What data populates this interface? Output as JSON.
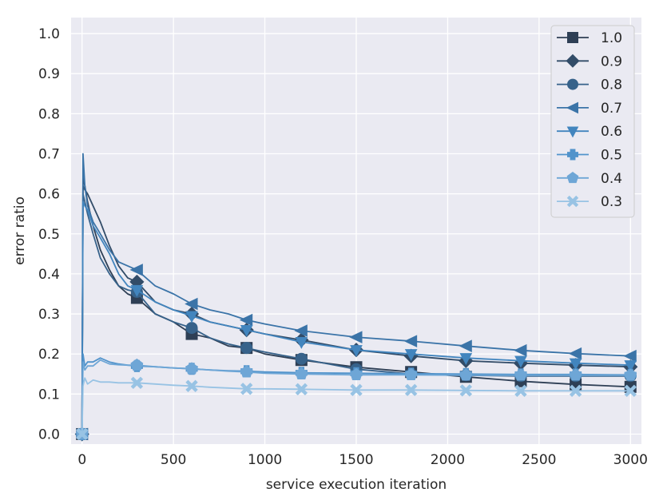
{
  "chart_data": {
    "type": "line",
    "xlabel": "service execution iteration",
    "ylabel": "error ratio",
    "xlim": [
      -60,
      3060
    ],
    "ylim": [
      -0.025,
      1.04
    ],
    "xticks": [
      0,
      500,
      1000,
      1500,
      2000,
      2500,
      3000
    ],
    "yticks": [
      0.0,
      0.1,
      0.2,
      0.3,
      0.4,
      0.5,
      0.6,
      0.7,
      0.8,
      0.9,
      1.0
    ],
    "xtick_labels": [
      "0",
      "500",
      "1000",
      "1500",
      "2000",
      "2500",
      "3000"
    ],
    "ytick_labels": [
      "0.0",
      "0.1",
      "0.2",
      "0.3",
      "0.4",
      "0.5",
      "0.6",
      "0.7",
      "0.8",
      "0.9",
      "1.0"
    ],
    "grid": true,
    "legend_position": "top-right",
    "series": [
      {
        "name": "1.0",
        "color": "#2e3f55",
        "marker": "square",
        "x": [
          0,
          5,
          15,
          30,
          60,
          100,
          150,
          200,
          250,
          300,
          400,
          500,
          600,
          700,
          800,
          900,
          1000,
          1200,
          1500,
          1800,
          2100,
          2400,
          2700,
          3000
        ],
        "y": [
          0.0,
          0.64,
          0.62,
          0.58,
          0.52,
          0.46,
          0.41,
          0.37,
          0.35,
          0.34,
          0.3,
          0.28,
          0.25,
          0.24,
          0.22,
          0.215,
          0.2,
          0.185,
          0.167,
          0.155,
          0.143,
          0.132,
          0.124,
          0.118
        ],
        "marker_x": [
          0,
          300,
          600,
          900,
          1200,
          1500,
          1800,
          2100,
          2400,
          2700,
          3000
        ]
      },
      {
        "name": "0.9",
        "color": "#324c68",
        "marker": "diamond",
        "x": [
          0,
          5,
          15,
          30,
          60,
          100,
          150,
          200,
          250,
          300,
          400,
          500,
          600,
          700,
          800,
          900,
          1000,
          1200,
          1500,
          1800,
          2100,
          2400,
          2700,
          3000
        ],
        "y": [
          0.0,
          0.62,
          0.61,
          0.6,
          0.57,
          0.53,
          0.47,
          0.42,
          0.39,
          0.38,
          0.33,
          0.31,
          0.3,
          0.28,
          0.27,
          0.26,
          0.25,
          0.235,
          0.21,
          0.195,
          0.183,
          0.177,
          0.172,
          0.168
        ],
        "marker_x": [
          0,
          300,
          600,
          900,
          1200,
          1500,
          1800,
          2100,
          2400,
          2700,
          3000
        ]
      },
      {
        "name": "0.8",
        "color": "#37628a",
        "marker": "circle",
        "x": [
          0,
          5,
          15,
          30,
          60,
          100,
          150,
          200,
          250,
          300,
          400,
          500,
          600,
          700,
          800,
          900,
          1000,
          1200,
          1500,
          1800,
          2100,
          2400,
          2700,
          3000
        ],
        "y": [
          0.0,
          0.6,
          0.58,
          0.55,
          0.5,
          0.44,
          0.4,
          0.37,
          0.36,
          0.355,
          0.3,
          0.28,
          0.265,
          0.24,
          0.225,
          0.215,
          0.205,
          0.188,
          0.162,
          0.15,
          0.147,
          0.145,
          0.145,
          0.145
        ],
        "marker_x": [
          0,
          300,
          600,
          900,
          1200,
          1500,
          1800,
          2100,
          2400,
          2700,
          3000
        ]
      },
      {
        "name": "0.7",
        "color": "#3b74a8",
        "marker": "triangle-left",
        "x": [
          0,
          5,
          15,
          30,
          60,
          100,
          150,
          200,
          250,
          300,
          400,
          500,
          600,
          700,
          800,
          900,
          1000,
          1200,
          1500,
          1800,
          2100,
          2400,
          2700,
          3000
        ],
        "y": [
          0.0,
          0.7,
          0.62,
          0.57,
          0.53,
          0.5,
          0.46,
          0.43,
          0.42,
          0.41,
          0.37,
          0.35,
          0.325,
          0.31,
          0.3,
          0.285,
          0.275,
          0.258,
          0.242,
          0.232,
          0.22,
          0.209,
          0.201,
          0.195
        ],
        "marker_x": [
          0,
          300,
          600,
          900,
          1200,
          1500,
          1800,
          2100,
          2400,
          2700,
          3000
        ]
      },
      {
        "name": "0.6",
        "color": "#4285be",
        "marker": "triangle-down",
        "x": [
          0,
          5,
          15,
          30,
          60,
          100,
          150,
          200,
          250,
          300,
          400,
          500,
          600,
          700,
          800,
          900,
          1000,
          1200,
          1500,
          1800,
          2100,
          2400,
          2700,
          3000
        ],
        "y": [
          0.0,
          0.58,
          0.57,
          0.56,
          0.52,
          0.49,
          0.45,
          0.4,
          0.37,
          0.36,
          0.33,
          0.31,
          0.295,
          0.28,
          0.27,
          0.26,
          0.25,
          0.23,
          0.21,
          0.2,
          0.19,
          0.183,
          0.177,
          0.172
        ],
        "marker_x": [
          0,
          300,
          600,
          900,
          1200,
          1500,
          1800,
          2100,
          2400,
          2700,
          3000
        ]
      },
      {
        "name": "0.5",
        "color": "#5193cb",
        "marker": "plus",
        "x": [
          0,
          5,
          15,
          30,
          60,
          100,
          150,
          200,
          250,
          300,
          400,
          500,
          600,
          700,
          800,
          900,
          1000,
          1200,
          1500,
          1800,
          2100,
          2400,
          2700,
          3000
        ],
        "y": [
          0.0,
          0.2,
          0.17,
          0.18,
          0.18,
          0.19,
          0.18,
          0.175,
          0.172,
          0.17,
          0.168,
          0.165,
          0.163,
          0.16,
          0.158,
          0.157,
          0.155,
          0.153,
          0.152,
          0.151,
          0.15,
          0.149,
          0.149,
          0.148
        ],
        "marker_x": [
          0,
          300,
          600,
          900,
          1200,
          1500,
          1800,
          2100,
          2400,
          2700,
          3000
        ]
      },
      {
        "name": "0.4",
        "color": "#6ea6d6",
        "marker": "pentagon",
        "x": [
          0,
          5,
          15,
          30,
          60,
          100,
          150,
          200,
          250,
          300,
          400,
          500,
          600,
          700,
          800,
          900,
          1000,
          1200,
          1500,
          1800,
          2100,
          2400,
          2700,
          3000
        ],
        "y": [
          0.0,
          0.18,
          0.16,
          0.17,
          0.17,
          0.185,
          0.175,
          0.173,
          0.172,
          0.172,
          0.168,
          0.165,
          0.163,
          0.16,
          0.157,
          0.155,
          0.152,
          0.15,
          0.148,
          0.148,
          0.147,
          0.147,
          0.147,
          0.147
        ],
        "marker_x": [
          0,
          300,
          600,
          900,
          1200,
          1500,
          1800,
          2100,
          2400,
          2700,
          3000
        ]
      },
      {
        "name": "0.3",
        "color": "#98c3e4",
        "marker": "x",
        "x": [
          0,
          5,
          15,
          30,
          60,
          100,
          150,
          200,
          250,
          300,
          400,
          500,
          600,
          700,
          800,
          900,
          1000,
          1200,
          1500,
          1800,
          2100,
          2400,
          2700,
          3000
        ],
        "y": [
          0.0,
          0.12,
          0.14,
          0.125,
          0.135,
          0.13,
          0.13,
          0.128,
          0.128,
          0.128,
          0.125,
          0.122,
          0.12,
          0.117,
          0.115,
          0.113,
          0.113,
          0.112,
          0.11,
          0.11,
          0.109,
          0.108,
          0.108,
          0.108
        ],
        "marker_x": [
          0,
          300,
          600,
          900,
          1200,
          1500,
          1800,
          2100,
          2400,
          2700,
          3000
        ]
      }
    ]
  }
}
